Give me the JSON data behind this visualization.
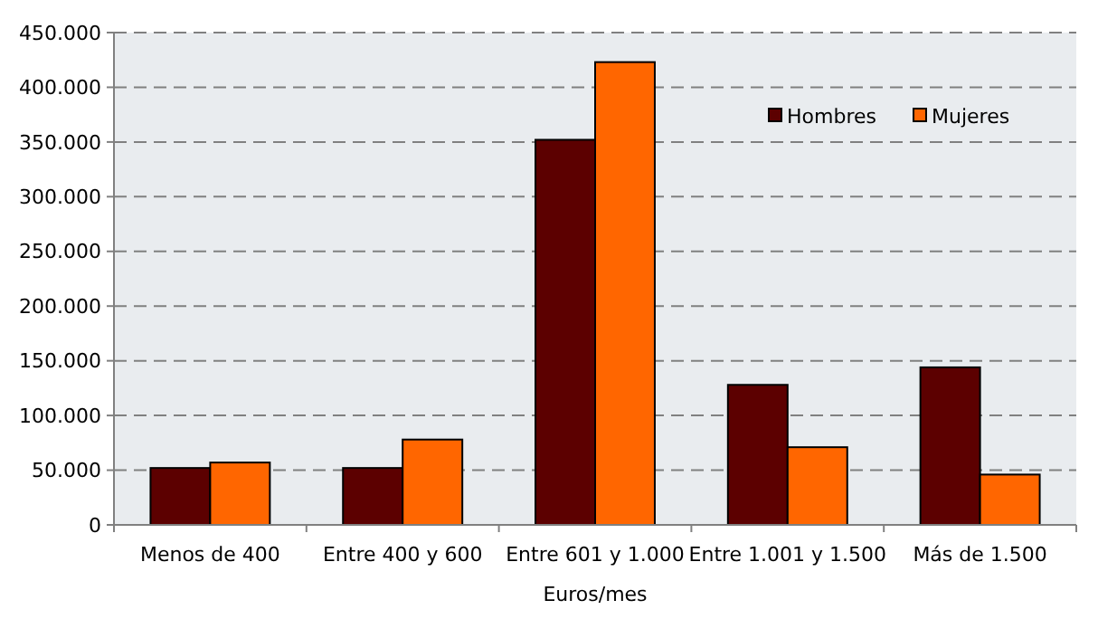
{
  "chart_data": {
    "type": "bar",
    "xlabel": "Euros/mes",
    "categories": [
      "Menos de 400",
      "Entre 400 y 600",
      "Entre 601 y 1.000",
      "Entre 1.001 y 1.500",
      "Más de 1.500"
    ],
    "series": [
      {
        "name": "Hombres",
        "color": "#5c0000",
        "values": [
          52000,
          52000,
          352000,
          128000,
          144000
        ]
      },
      {
        "name": "Mujeres",
        "color": "#ff6600",
        "values": [
          57000,
          78000,
          423000,
          71000,
          46000
        ]
      }
    ],
    "ylim": [
      0,
      450000
    ],
    "yticks": [
      0,
      {
        "value": 50000,
        "label": "50.000"
      },
      {
        "value": 100000,
        "label": "100.000"
      },
      {
        "value": 150000,
        "label": "150.000"
      },
      {
        "value": 200000,
        "label": "200.000"
      },
      {
        "value": 250000,
        "label": "250.000"
      },
      {
        "value": 300000,
        "label": "300.000"
      },
      {
        "value": 350000,
        "label": "350.000"
      },
      {
        "value": 400000,
        "label": "400.000"
      },
      {
        "value": 450000,
        "label": "450.000"
      }
    ],
    "grid": "y",
    "legend": "top right"
  }
}
